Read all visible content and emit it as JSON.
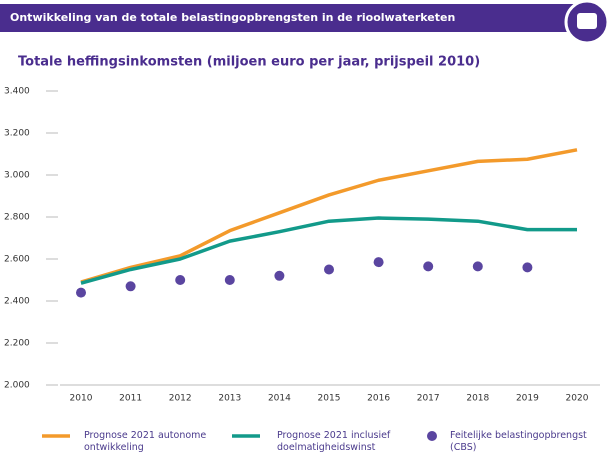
{
  "header": {
    "title": "Ontwikkeling van de totale belastingopbrengsten in de rioolwaterketen"
  },
  "chart_data": {
    "type": "line",
    "title": "Totale heffingsinkomsten (miljoen euro per jaar,  prijspeil 2010)",
    "categories": [
      "2010",
      "2011",
      "2012",
      "2013",
      "2014",
      "2015",
      "2016",
      "2017",
      "2018",
      "2019",
      "2020"
    ],
    "series": [
      {
        "name": "Prognose 2021 autonome ontwikkeling",
        "color": "#f39a2b",
        "type": "line",
        "values": [
          2490,
          2560,
          2615,
          2735,
          2820,
          2905,
          2975,
          3020,
          3065,
          3075,
          3120
        ]
      },
      {
        "name": "Prognose 2021 inclusief doelmatigheidswinst",
        "color": "#129a8a",
        "type": "line",
        "values": [
          2485,
          2550,
          2600,
          2685,
          2730,
          2780,
          2795,
          2790,
          2780,
          2740,
          2740
        ]
      },
      {
        "name": "Feitelijke belastingopbrengst (CBS)",
        "color": "#5a45a0",
        "type": "scatter",
        "values": [
          2440,
          2470,
          2500,
          2500,
          2520,
          2550,
          2585,
          2565,
          2565,
          2560,
          null
        ]
      }
    ],
    "ylim": [
      2000,
      3400
    ],
    "yticks": [
      {
        "value": 2000,
        "label": "2.000"
      },
      {
        "value": 2200,
        "label": "2.200"
      },
      {
        "value": 2400,
        "label": "2.400"
      },
      {
        "value": 2600,
        "label": "2.600"
      },
      {
        "value": 2800,
        "label": "2.800"
      },
      {
        "value": 3000,
        "label": "3.000"
      },
      {
        "value": 3200,
        "label": "3.200"
      },
      {
        "value": 3400,
        "label": "3.400"
      }
    ]
  }
}
